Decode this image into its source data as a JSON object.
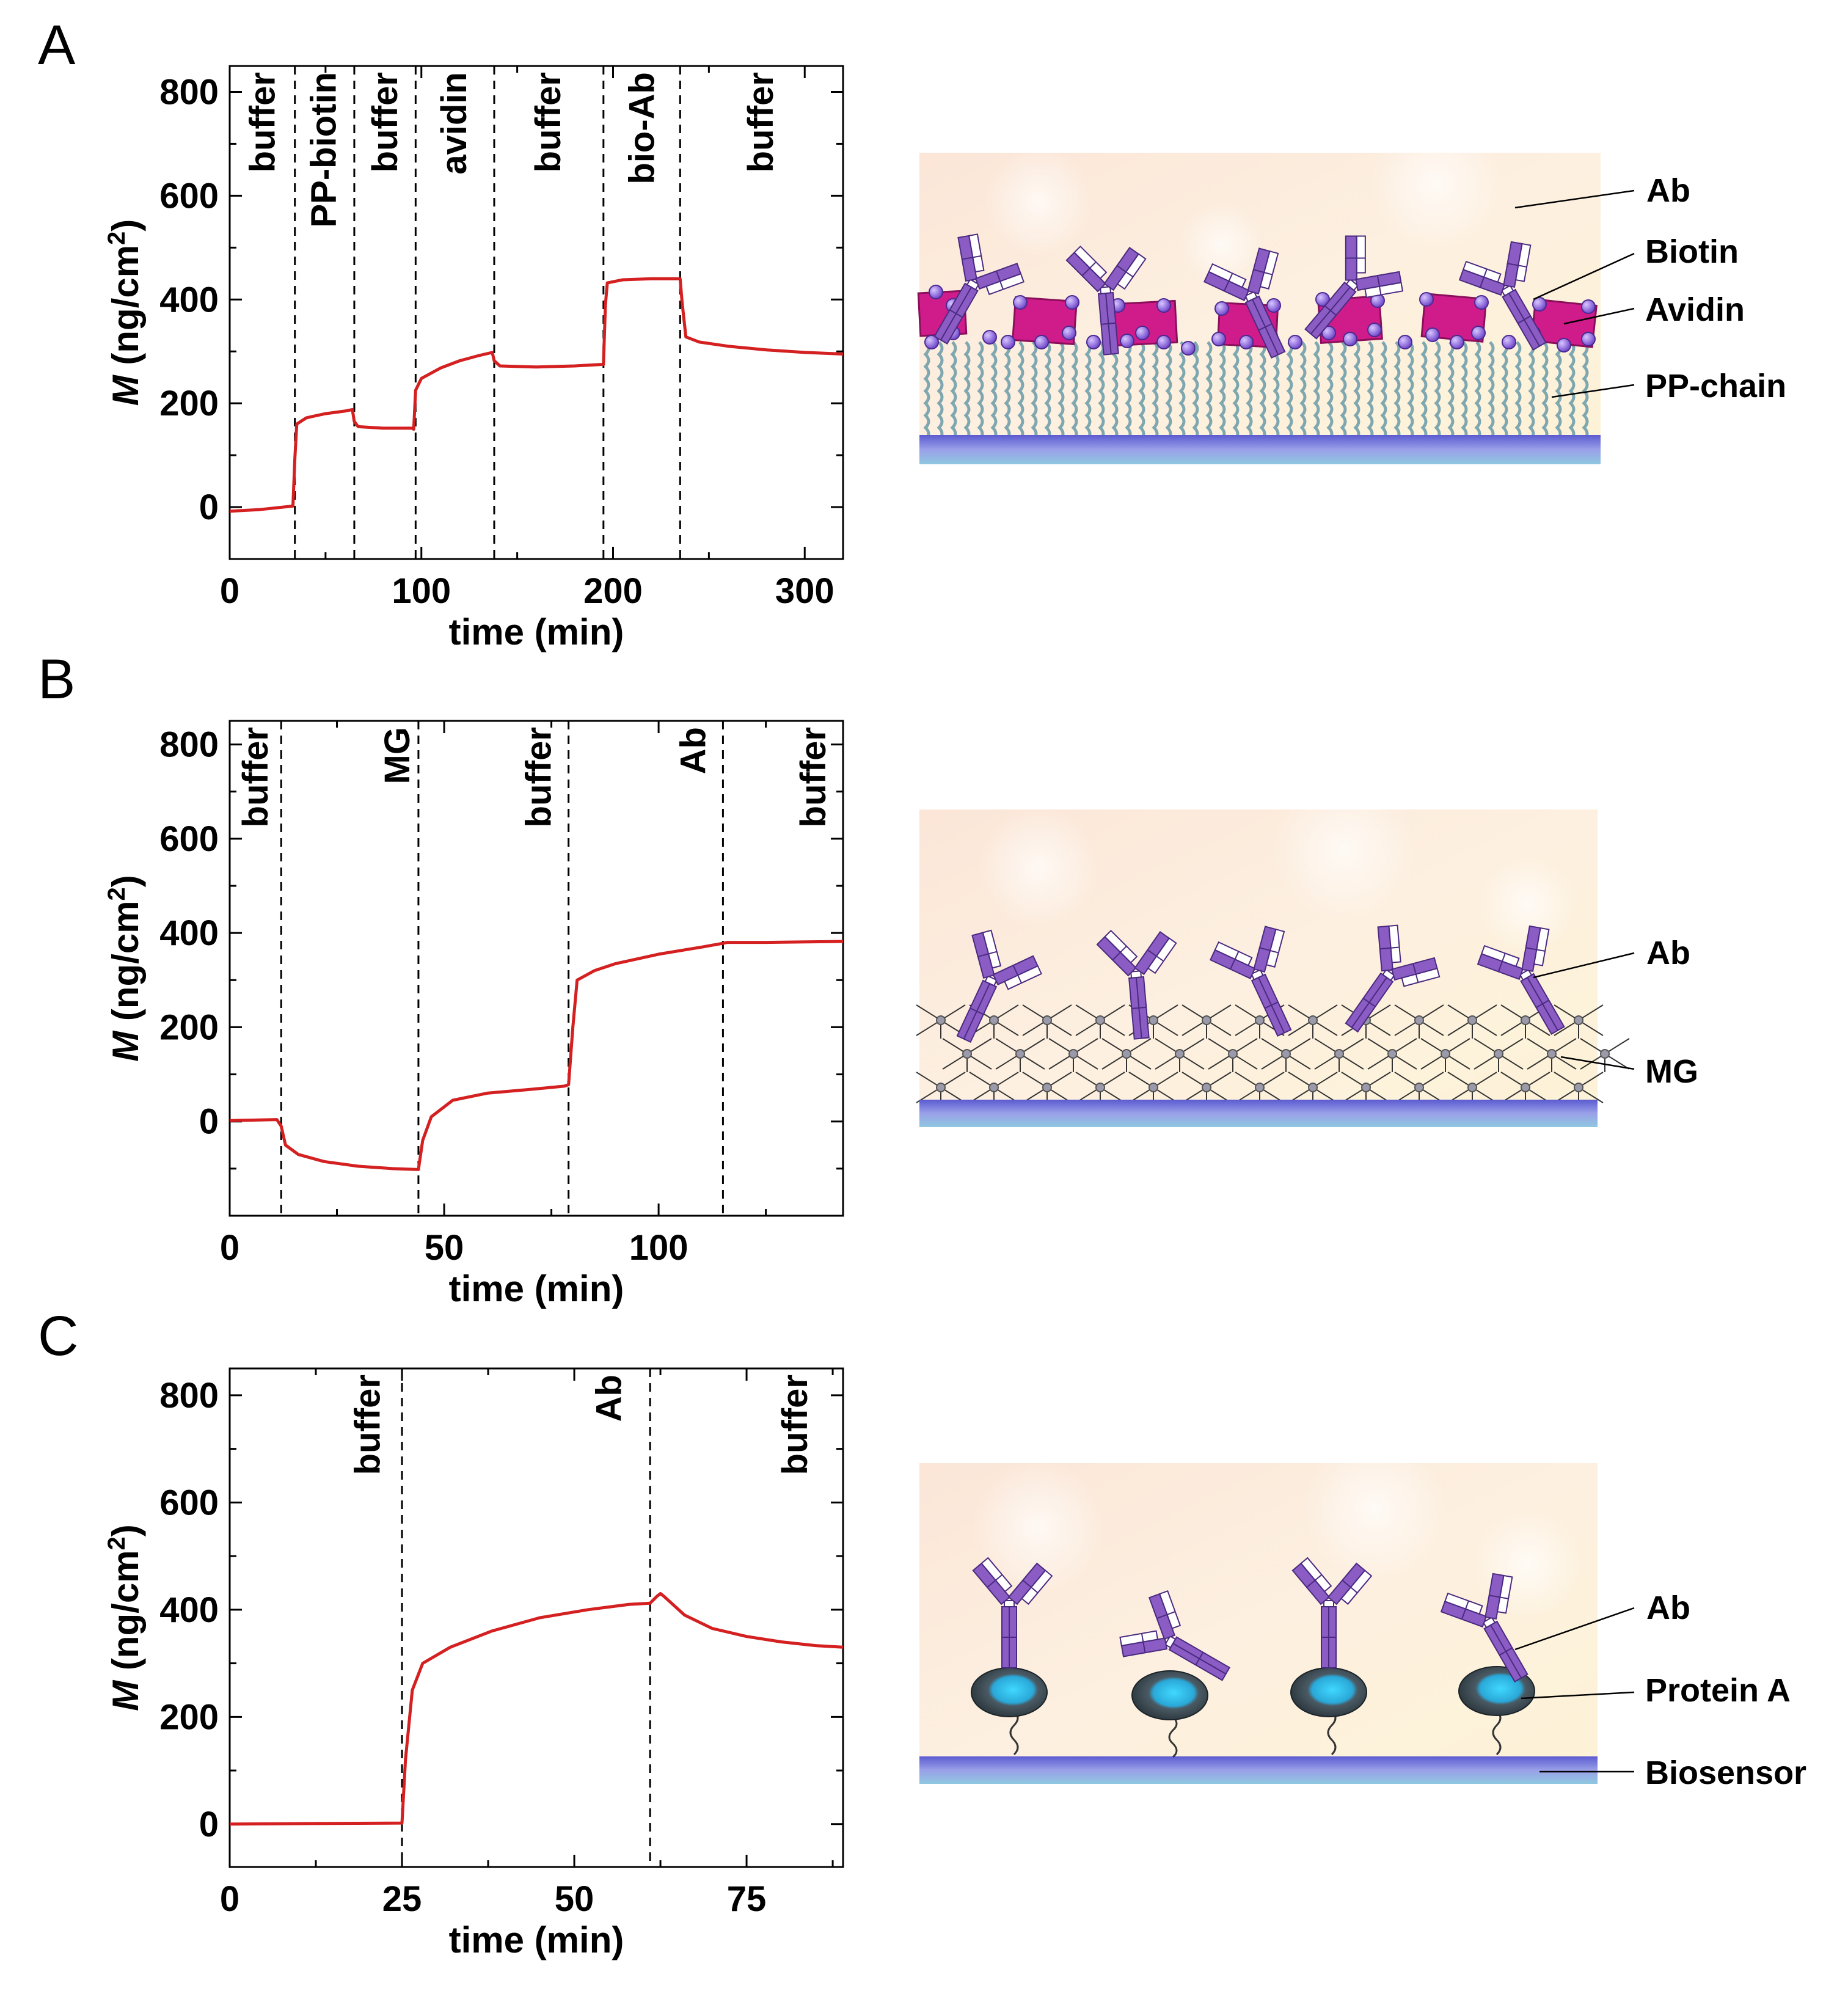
{
  "panel_letters": [
    "A",
    "B",
    "C"
  ],
  "chart_data": [
    {
      "type": "line",
      "panel": "A",
      "xlabel": "time (min)",
      "ylabel_italic": "M",
      "ylabel_rest": " (ng/cm",
      "ylabel_sup": "2",
      "ylabel_close": ")",
      "xlim": [
        0,
        320
      ],
      "ylim": [
        -100,
        850
      ],
      "xticks": [
        0,
        100,
        200,
        300
      ],
      "yticks": [
        0,
        200,
        400,
        600,
        800
      ],
      "dividers": [
        34,
        65,
        97,
        138,
        195,
        235
      ],
      "steps": [
        {
          "label": "buffer",
          "x": 17
        },
        {
          "label": "PP-biotin",
          "x": 49
        },
        {
          "label": "buffer",
          "x": 81
        },
        {
          "label": "avidin",
          "x": 117
        },
        {
          "label": "buffer",
          "x": 166
        },
        {
          "label": "bio-Ab",
          "x": 215
        },
        {
          "label": "buffer",
          "x": 277
        }
      ],
      "series": [
        {
          "name": "M",
          "color": "#d42020",
          "points": [
            [
              0,
              -8
            ],
            [
              15,
              -5
            ],
            [
              33,
              2
            ],
            [
              34,
              95
            ],
            [
              35,
              160
            ],
            [
              40,
              172
            ],
            [
              50,
              180
            ],
            [
              60,
              185
            ],
            [
              64,
              188
            ],
            [
              65,
              165
            ],
            [
              67,
              155
            ],
            [
              80,
              152
            ],
            [
              95,
              152
            ],
            [
              96,
              150
            ],
            [
              97,
              225
            ],
            [
              100,
              248
            ],
            [
              110,
              268
            ],
            [
              120,
              282
            ],
            [
              130,
              292
            ],
            [
              137,
              298
            ],
            [
              138,
              282
            ],
            [
              141,
              272
            ],
            [
              160,
              270
            ],
            [
              180,
              272
            ],
            [
              195,
              275
            ],
            [
              196,
              390
            ],
            [
              197,
              432
            ],
            [
              205,
              438
            ],
            [
              220,
              440
            ],
            [
              235,
              440
            ],
            [
              236,
              395
            ],
            [
              238,
              328
            ],
            [
              245,
              318
            ],
            [
              260,
              310
            ],
            [
              280,
              303
            ],
            [
              300,
              298
            ],
            [
              320,
              295
            ]
          ]
        }
      ]
    },
    {
      "type": "line",
      "panel": "B",
      "xlabel": "time (min)",
      "ylabel_italic": "M",
      "ylabel_rest": " (ng/cm",
      "ylabel_sup": "2",
      "ylabel_close": ")",
      "xlim": [
        0,
        143
      ],
      "ylim": [
        -200,
        850
      ],
      "xticks": [
        0,
        50,
        100
      ],
      "yticks": [
        0,
        200,
        400,
        600,
        800
      ],
      "dividers": [
        12,
        44,
        79,
        115
      ],
      "steps": [
        {
          "label": "buffer",
          "x": 6
        },
        {
          "label": "MG",
          "x": 39
        },
        {
          "label": "buffer",
          "x": 72
        },
        {
          "label": "Ab",
          "x": 108
        },
        {
          "label": "buffer",
          "x": 136
        }
      ],
      "series": [
        {
          "name": "M",
          "color": "#d42020",
          "points": [
            [
              0,
              2
            ],
            [
              6,
              3
            ],
            [
              11,
              4
            ],
            [
              12,
              -10
            ],
            [
              13,
              -50
            ],
            [
              16,
              -70
            ],
            [
              22,
              -85
            ],
            [
              30,
              -95
            ],
            [
              38,
              -100
            ],
            [
              44,
              -102
            ],
            [
              45,
              -40
            ],
            [
              47,
              10
            ],
            [
              52,
              45
            ],
            [
              60,
              60
            ],
            [
              70,
              68
            ],
            [
              78,
              75
            ],
            [
              79,
              78
            ],
            [
              80,
              200
            ],
            [
              81,
              300
            ],
            [
              85,
              320
            ],
            [
              90,
              335
            ],
            [
              100,
              355
            ],
            [
              110,
              370
            ],
            [
              115,
              378
            ],
            [
              116,
              380
            ],
            [
              125,
              380
            ],
            [
              143,
              382
            ]
          ]
        }
      ]
    },
    {
      "type": "line",
      "panel": "C",
      "xlabel": "time (min)",
      "ylabel_italic": "M",
      "ylabel_rest": " (ng/cm",
      "ylabel_sup": "2",
      "ylabel_close": ")",
      "xlim": [
        0,
        89
      ],
      "ylim": [
        -80,
        850
      ],
      "xticks": [
        0,
        25,
        50,
        75
      ],
      "yticks": [
        0,
        200,
        400,
        600,
        800
      ],
      "dividers": [
        25,
        61
      ],
      "steps": [
        {
          "label": "buffer",
          "x": 20
        },
        {
          "label": "Ab",
          "x": 55
        },
        {
          "label": "buffer",
          "x": 82
        }
      ],
      "series": [
        {
          "name": "M",
          "color": "#d42020",
          "points": [
            [
              0,
              0
            ],
            [
              12,
              1
            ],
            [
              25,
              2
            ],
            [
              25.5,
              120
            ],
            [
              26.5,
              250
            ],
            [
              28,
              300
            ],
            [
              32,
              330
            ],
            [
              38,
              360
            ],
            [
              45,
              385
            ],
            [
              52,
              400
            ],
            [
              58,
              410
            ],
            [
              61,
              412
            ],
            [
              62,
              425
            ],
            [
              62.5,
              430
            ],
            [
              63,
              425
            ],
            [
              66,
              390
            ],
            [
              70,
              365
            ],
            [
              75,
              350
            ],
            [
              80,
              340
            ],
            [
              85,
              333
            ],
            [
              89,
              330
            ]
          ]
        }
      ]
    }
  ],
  "diagrams": [
    {
      "panel": "A",
      "labels": [
        "Ab",
        "Biotin",
        "Avidin",
        "PP-chain"
      ]
    },
    {
      "panel": "B",
      "labels": [
        "Ab",
        "MG"
      ]
    },
    {
      "panel": "C",
      "labels": [
        "Ab",
        "Protein A",
        "Biosensor"
      ]
    }
  ],
  "colors": {
    "curve": "#d42020",
    "antibody": "#8a5cc4",
    "antibody_light": "#ffffff",
    "avidin": "#d01c8b",
    "biotin": "#8e5fd8",
    "chain": "#7fa7b0",
    "surface": "#6a6ad2",
    "proteinA_dark": "#3a4a55",
    "proteinA_light": "#38c8f0"
  }
}
